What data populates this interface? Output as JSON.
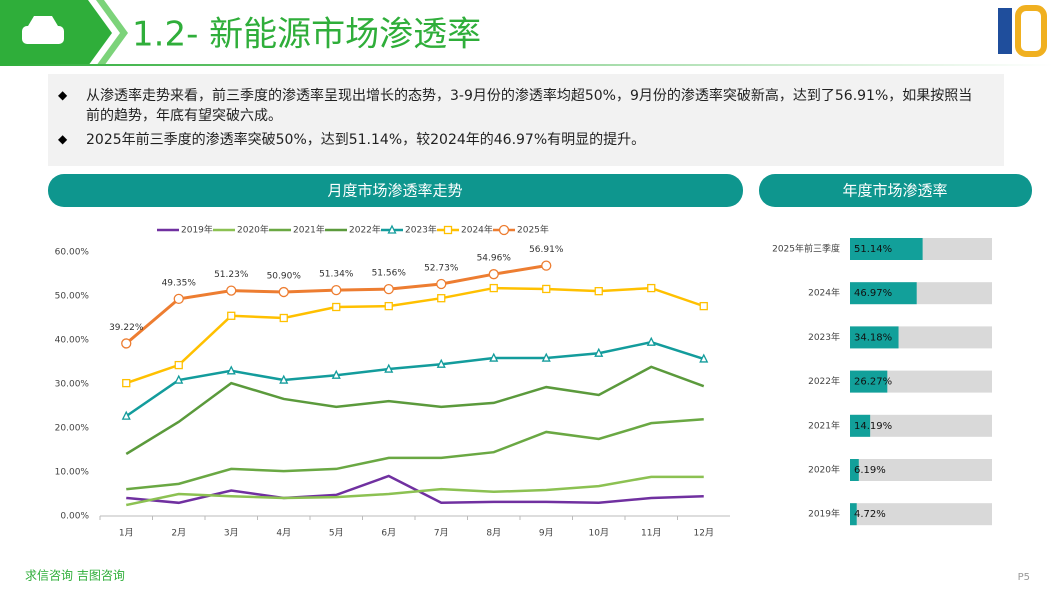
{
  "header": {
    "title": "1.2- 新能源市场渗透率"
  },
  "bullets": [
    "从渗透率走势来看，前三季度的渗透率呈现出增长的态势，3-9月份的渗透率均超50%，9月份的渗透率突破新高，达到了56.91%，如果按照当前的趋势，年底有望突破六成。",
    "2025年前三季度的渗透率突破50%，达到51.14%，较2024年的46.97%有明显的提升。"
  ],
  "chart_data": [
    {
      "type": "line",
      "title": "月度市场渗透率走势",
      "categories": [
        "1月",
        "2月",
        "3月",
        "4月",
        "5月",
        "6月",
        "7月",
        "8月",
        "9月",
        "10月",
        "11月",
        "12月"
      ],
      "ylim": [
        0,
        60
      ],
      "yticks": [
        {
          "value": 0,
          "label": "0.00%"
        },
        {
          "value": 10,
          "label": "10.00%"
        },
        {
          "value": 20,
          "label": "20.00%"
        },
        {
          "value": 30,
          "label": "30.00%"
        },
        {
          "value": 40,
          "label": "40.00%"
        },
        {
          "value": 50,
          "label": "50.00%"
        },
        {
          "value": 60,
          "label": "60.00%"
        }
      ],
      "legend": "top",
      "series": [
        {
          "name": "2019年",
          "color": "#7030a0",
          "values": [
            4.1,
            3.0,
            5.8,
            4.1,
            4.8,
            9.1,
            3.0,
            3.2,
            3.2,
            3.0,
            4.1,
            4.5
          ]
        },
        {
          "name": "2020年",
          "color": "#8cc152",
          "values": [
            2.5,
            5.0,
            4.5,
            4.1,
            4.3,
            5.0,
            6.1,
            5.5,
            5.9,
            6.8,
            8.9,
            8.9
          ]
        },
        {
          "name": "2021年",
          "color": "#6aa843",
          "values": [
            6.1,
            7.3,
            10.7,
            10.2,
            10.7,
            13.2,
            13.2,
            14.5,
            19.1,
            17.5,
            21.1,
            22.0
          ]
        },
        {
          "name": "2022年",
          "color": "#5b9a3c",
          "values": [
            14.1,
            21.4,
            30.2,
            26.6,
            24.8,
            26.1,
            24.8,
            25.7,
            29.3,
            27.5,
            33.9,
            29.5
          ]
        },
        {
          "name": "2023年",
          "color": "#139c9c",
          "marker": "triangle",
          "values": [
            22.7,
            30.9,
            33.0,
            30.9,
            32.0,
            33.4,
            34.5,
            35.9,
            35.9,
            37.0,
            39.5,
            35.7
          ]
        },
        {
          "name": "2024年",
          "color": "#ffc000",
          "marker": "square",
          "values": [
            30.2,
            34.3,
            45.5,
            45.0,
            47.5,
            47.7,
            49.5,
            51.8,
            51.6,
            51.1,
            51.8,
            47.7
          ]
        },
        {
          "name": "2025年",
          "color": "#ed7d31",
          "marker": "circle",
          "values": [
            39.22,
            49.35,
            51.23,
            50.9,
            51.34,
            51.56,
            52.73,
            54.96,
            56.91,
            null,
            null,
            null
          ],
          "value_labels": [
            "39.22%",
            "49.35%",
            "51.23%",
            "50.90%",
            "51.34%",
            "51.56%",
            "52.73%",
            "54.96%",
            "56.91%",
            null,
            null,
            null
          ]
        }
      ]
    },
    {
      "type": "hbar",
      "title": "年度市场渗透率",
      "categories": [
        "2025年前三季度",
        "2024年",
        "2023年",
        "2022年",
        "2021年",
        "2020年",
        "2019年"
      ],
      "values": [
        51.14,
        46.97,
        34.18,
        26.27,
        14.19,
        6.19,
        4.72
      ],
      "value_labels": [
        "51.14%",
        "46.97%",
        "34.18%",
        "26.27%",
        "14.19%",
        "6.19%",
        "4.72%"
      ],
      "xlim": [
        0,
        100
      ],
      "color": "#12a09a"
    }
  ],
  "footer": {
    "company": "求信咨询 吉图咨询",
    "page": "P5"
  }
}
